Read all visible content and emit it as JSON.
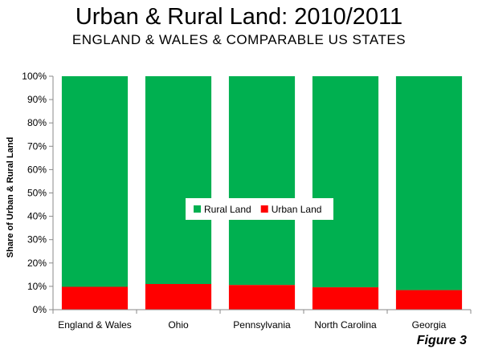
{
  "header": {
    "title": "Urban & Rural Land: 2010/2011",
    "subtitle": "ENGLAND & WALES & COMPARABLE US STATES"
  },
  "figure_label": "Figure 3",
  "chart_data": {
    "type": "bar",
    "stacked": true,
    "title": "Urban & Rural Land: 2010/2011",
    "subtitle": "ENGLAND & WALES & COMPARABLE US STATES",
    "xlabel": "",
    "ylabel": "Share of Urban & Rural Land",
    "ylim": [
      0,
      100
    ],
    "yticks": [
      "0%",
      "10%",
      "20%",
      "30%",
      "40%",
      "50%",
      "60%",
      "70%",
      "80%",
      "90%",
      "100%"
    ],
    "categories": [
      "England & Wales",
      "Ohio",
      "Pennsylvania",
      "North Carolina",
      "Georgia"
    ],
    "series": [
      {
        "name": "Urban Land",
        "color": "#ff0000",
        "values": [
          9.8,
          11.0,
          10.6,
          9.6,
          8.4
        ]
      },
      {
        "name": "Rural Land",
        "color": "#00b050",
        "values": [
          90.2,
          89.0,
          89.4,
          90.4,
          91.6
        ]
      }
    ],
    "legend": {
      "placement": "center",
      "order": [
        "Rural Land",
        "Urban Land"
      ]
    },
    "grid": false
  }
}
